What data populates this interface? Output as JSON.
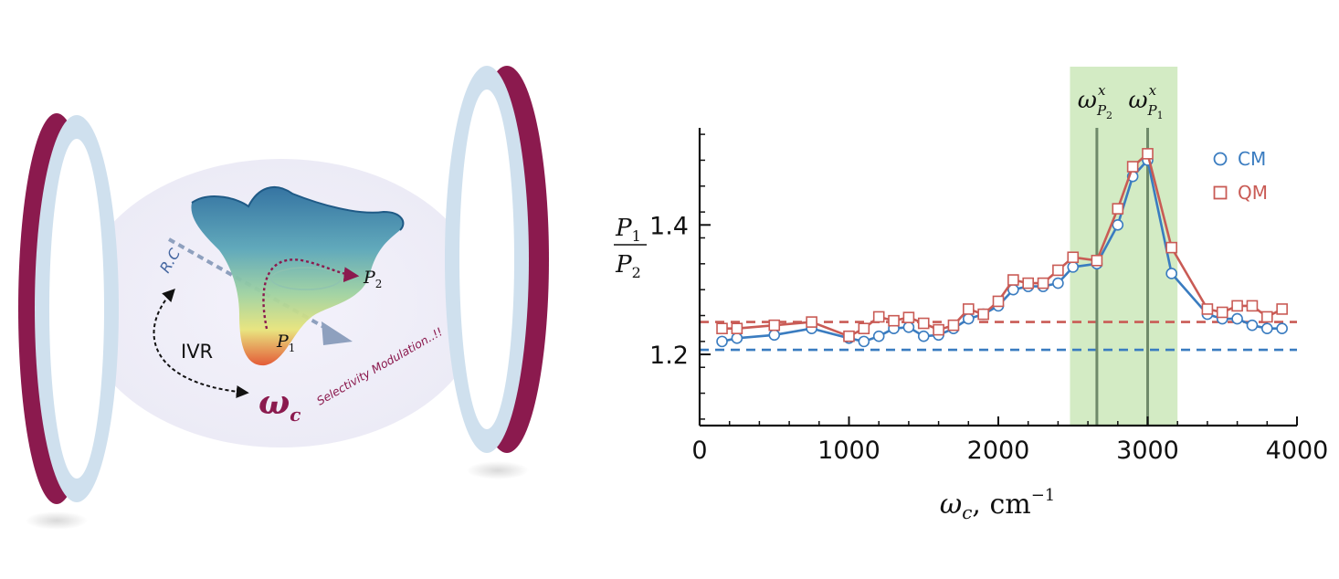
{
  "illustration": {
    "reaction_coordinate_label": "R.C",
    "ivr_label": "IVR",
    "cavity_frequency_label": "ω",
    "cavity_frequency_sub": "c",
    "product1_label": "P",
    "product1_sub": "1",
    "product2_label": "P",
    "product2_sub": "2",
    "modulation_label": "Selectivity Modulation..!!",
    "colors": {
      "mirror_outer": "#8b1a4e",
      "mirror_inner": "#cfe0ee",
      "halo": "#efeef8",
      "accent": "#8b1a4e"
    }
  },
  "chart_data": {
    "type": "line",
    "xlabel_main": "ω",
    "xlabel_sub": "c",
    "xlabel_unit": ", cm",
    "xlabel_exp": "−1",
    "ylabel_num": "P",
    "ylabel_num_sub": "1",
    "ylabel_den": "P",
    "ylabel_den_sub": "2",
    "xlim": [
      0,
      4000
    ],
    "ylim": [
      1.09,
      1.55
    ],
    "xticks": [
      0,
      1000,
      2000,
      3000,
      4000
    ],
    "xtick_labels": [
      "0",
      "1000",
      "2000",
      "3000",
      "4000"
    ],
    "yticks": [
      1.2,
      1.4
    ],
    "ytick_labels": [
      "1.2",
      "1.4"
    ],
    "grid": false,
    "legend_placement": "top-right",
    "highlight_band": {
      "x0": 2480,
      "x1": 3200,
      "color": "#d3ebc4"
    },
    "vlines": [
      {
        "x": 2660,
        "label": "ω",
        "sup": "x",
        "sub": "P",
        "subsub": "2"
      },
      {
        "x": 3000,
        "label": "ω",
        "sup": "x",
        "sub": "P",
        "subsub": "1"
      }
    ],
    "series": [
      {
        "name": "CM",
        "marker": "circle",
        "color": "#3a7cc0",
        "x": [
          150,
          250,
          500,
          750,
          1000,
          1100,
          1200,
          1300,
          1400,
          1500,
          1600,
          1700,
          1800,
          1900,
          2000,
          2100,
          2200,
          2300,
          2400,
          2500,
          2660,
          2800,
          2900,
          3000,
          3160,
          3400,
          3500,
          3600,
          3700,
          3800,
          3900
        ],
        "y": [
          1.22,
          1.225,
          1.23,
          1.24,
          1.225,
          1.22,
          1.228,
          1.24,
          1.242,
          1.228,
          1.23,
          1.24,
          1.255,
          1.262,
          1.275,
          1.3,
          1.305,
          1.305,
          1.31,
          1.335,
          1.34,
          1.4,
          1.475,
          1.5,
          1.325,
          1.262,
          1.255,
          1.255,
          1.245,
          1.24,
          1.24
        ]
      },
      {
        "name": "QM",
        "marker": "square",
        "color": "#c95b55",
        "x": [
          150,
          250,
          500,
          750,
          1000,
          1100,
          1200,
          1300,
          1400,
          1500,
          1600,
          1700,
          1800,
          1900,
          2000,
          2100,
          2200,
          2300,
          2400,
          2500,
          2660,
          2800,
          2900,
          3000,
          3160,
          3400,
          3500,
          3600,
          3700,
          3800,
          3900
        ],
        "y": [
          1.24,
          1.24,
          1.245,
          1.25,
          1.228,
          1.24,
          1.258,
          1.252,
          1.257,
          1.248,
          1.238,
          1.245,
          1.27,
          1.262,
          1.282,
          1.315,
          1.31,
          1.31,
          1.33,
          1.35,
          1.345,
          1.425,
          1.49,
          1.51,
          1.365,
          1.27,
          1.265,
          1.275,
          1.275,
          1.258,
          1.27
        ]
      }
    ],
    "reference_lines": [
      {
        "series": "QM",
        "y": 1.25,
        "color": "#c95b55"
      },
      {
        "series": "CM",
        "y": 1.207,
        "color": "#3a7cc0"
      }
    ]
  }
}
